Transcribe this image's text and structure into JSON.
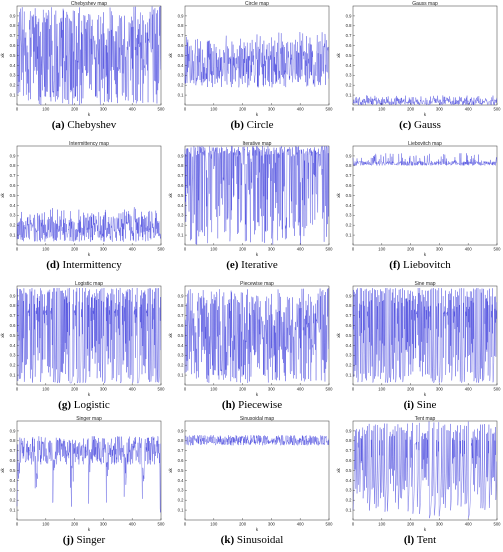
{
  "figure": {
    "panels": [
      {
        "letter": "(a)",
        "name": "Chebyshev",
        "title": "Chebyshev map",
        "color": "#2b2bd9"
      },
      {
        "letter": "(b)",
        "name": "Circle",
        "title": "Circle map",
        "color": "#2b2bd9"
      },
      {
        "letter": "(c)",
        "name": "Gauss",
        "title": "Gauss map",
        "color": "#2b2bd9"
      },
      {
        "letter": "(d)",
        "name": "Intermittency",
        "title": "Intermittency map",
        "color": "#2b2bd9"
      },
      {
        "letter": "(e)",
        "name": "Iterative",
        "title": "Iterative map",
        "color": "#2b2bd9"
      },
      {
        "letter": "(f)",
        "name": "Liebovitch",
        "title": "Liebovitch map",
        "color": "#2b2bd9"
      },
      {
        "letter": "(g)",
        "name": "Logistic",
        "title": "Logistic map",
        "color": "#2b2bd9"
      },
      {
        "letter": "(h)",
        "name": "Piecewise",
        "title": "Piecewise map",
        "color": "#2b2bd9"
      },
      {
        "letter": "(i)",
        "name": "Sine",
        "title": "Sine map",
        "color": "#2b2bd9"
      },
      {
        "letter": "(j)",
        "name": "Singer",
        "title": "Singer map",
        "color": "#2b2bd9"
      },
      {
        "letter": "(k)",
        "name": "Sinusoidal",
        "title": "Sinusoidal map",
        "color": "#2b2bd9"
      },
      {
        "letter": "(l)",
        "name": "Tent",
        "title": "Tent map",
        "color": "#2b2bd9"
      }
    ]
  },
  "chart_data": [
    {
      "type": "line",
      "title": "Chebyshev map",
      "xlabel": "k",
      "ylabel": "xk",
      "xlim": [
        0,
        500
      ],
      "ylim": [
        0,
        1
      ],
      "x_ticks": [
        "0",
        "100",
        "200",
        "300",
        "400",
        "500"
      ],
      "y_ticks": [
        "0.1",
        "0.2",
        "0.3",
        "0.4",
        "0.5",
        "0.6",
        "0.7",
        "0.8",
        "0.9"
      ],
      "series": [
        {
          "model": "chebyshev",
          "range": [
            0.0,
            1.0
          ],
          "n_points": 500
        }
      ]
    },
    {
      "type": "line",
      "title": "Circle map",
      "xlabel": "k",
      "ylabel": "xk",
      "xlim": [
        0,
        500
      ],
      "ylim": [
        0,
        1
      ],
      "x_ticks": [
        "0",
        "100",
        "200",
        "300",
        "400",
        "500"
      ],
      "y_ticks": [
        "0.1",
        "0.2",
        "0.3",
        "0.4",
        "0.5",
        "0.6",
        "0.7",
        "0.8",
        "0.9"
      ],
      "series": [
        {
          "model": "circle",
          "range": [
            0.05,
            0.9
          ],
          "n_points": 500
        }
      ]
    },
    {
      "type": "line",
      "title": "Gauss map",
      "xlabel": "k",
      "ylabel": "xk",
      "xlim": [
        0,
        500
      ],
      "ylim": [
        0,
        1
      ],
      "x_ticks": [
        "0",
        "100",
        "200",
        "300",
        "400",
        "500"
      ],
      "y_ticks": [
        "0.1",
        "0.2",
        "0.3",
        "0.4",
        "0.5",
        "0.6",
        "0.7",
        "0.8",
        "0.9"
      ],
      "series": [
        {
          "model": "gauss",
          "range": [
            0.0,
            0.32
          ],
          "n_points": 500
        }
      ]
    },
    {
      "type": "line",
      "title": "Intermittency map",
      "xlabel": "k",
      "ylabel": "xk",
      "xlim": [
        0,
        500
      ],
      "ylim": [
        0,
        1
      ],
      "x_ticks": [
        "0",
        "100",
        "200",
        "300",
        "400",
        "500"
      ],
      "y_ticks": [
        "0.1",
        "0.2",
        "0.3",
        "0.4",
        "0.5",
        "0.6",
        "0.7",
        "0.8",
        "0.9"
      ],
      "series": [
        {
          "model": "intermittency",
          "range": [
            0.0,
            0.65
          ],
          "n_points": 500
        }
      ]
    },
    {
      "type": "line",
      "title": "Iterative map",
      "xlabel": "k",
      "ylabel": "xk",
      "xlim": [
        0,
        500
      ],
      "ylim": [
        0,
        1
      ],
      "x_ticks": [
        "0",
        "100",
        "200",
        "300",
        "400",
        "500"
      ],
      "y_ticks": [
        "0.1",
        "0.2",
        "0.3",
        "0.4",
        "0.5",
        "0.6",
        "0.7",
        "0.8",
        "0.9"
      ],
      "series": [
        {
          "model": "iterative",
          "range": [
            0.0,
            1.0
          ],
          "n_points": 500
        }
      ]
    },
    {
      "type": "line",
      "title": "Liebovitch map",
      "xlabel": "k",
      "ylabel": "xk",
      "xlim": [
        0,
        500
      ],
      "ylim": [
        0,
        1
      ],
      "x_ticks": [
        "0",
        "100",
        "200",
        "300",
        "400",
        "500"
      ],
      "y_ticks": [
        "0.1",
        "0.2",
        "0.3",
        "0.4",
        "0.5",
        "0.6",
        "0.7",
        "0.8",
        "0.9"
      ],
      "series": [
        {
          "model": "liebovitch",
          "range": [
            0.58,
            0.95
          ],
          "n_points": 500
        }
      ]
    },
    {
      "type": "line",
      "title": "Logistic map",
      "xlabel": "k",
      "ylabel": "xk",
      "xlim": [
        0,
        500
      ],
      "ylim": [
        0,
        1
      ],
      "x_ticks": [
        "0",
        "100",
        "200",
        "300",
        "400",
        "500"
      ],
      "y_ticks": [
        "0.1",
        "0.2",
        "0.3",
        "0.4",
        "0.5",
        "0.6",
        "0.7",
        "0.8",
        "0.9"
      ],
      "series": [
        {
          "model": "logistic",
          "range": [
            0.02,
            0.98
          ],
          "n_points": 500
        }
      ]
    },
    {
      "type": "line",
      "title": "Piecewise map",
      "xlabel": "k",
      "ylabel": "xk",
      "xlim": [
        0,
        500
      ],
      "ylim": [
        0,
        1
      ],
      "x_ticks": [
        "0",
        "100",
        "200",
        "300",
        "400",
        "500"
      ],
      "y_ticks": [
        "0.1",
        "0.2",
        "0.3",
        "0.4",
        "0.5",
        "0.6",
        "0.7",
        "0.8",
        "0.9"
      ],
      "series": [
        {
          "model": "piecewise",
          "range": [
            0.02,
            0.98
          ],
          "n_points": 500
        }
      ]
    },
    {
      "type": "line",
      "title": "Sine map",
      "xlabel": "k",
      "ylabel": "xk",
      "xlim": [
        0,
        500
      ],
      "ylim": [
        0,
        1
      ],
      "x_ticks": [
        "0",
        "100",
        "200",
        "300",
        "400",
        "500"
      ],
      "y_ticks": [
        "0.1",
        "0.2",
        "0.3",
        "0.4",
        "0.5",
        "0.6",
        "0.7",
        "0.8",
        "0.9"
      ],
      "series": [
        {
          "model": "sine",
          "range": [
            0.02,
            0.98
          ],
          "n_points": 500
        }
      ]
    },
    {
      "type": "line",
      "title": "Singer map",
      "xlabel": "k",
      "ylabel": "xk",
      "xlim": [
        0,
        500
      ],
      "ylim": [
        0,
        1
      ],
      "x_ticks": [
        "0",
        "100",
        "200",
        "300",
        "400",
        "500"
      ],
      "y_ticks": [
        "0.1",
        "0.2",
        "0.3",
        "0.4",
        "0.5",
        "0.6",
        "0.7",
        "0.8",
        "0.9"
      ],
      "series": [
        {
          "model": "singer",
          "range": [
            0.02,
            0.92
          ],
          "n_points": 500
        }
      ]
    },
    {
      "type": "line",
      "title": "Sinusoidal map",
      "xlabel": "k",
      "ylabel": "xk",
      "xlim": [
        0,
        500
      ],
      "ylim": [
        0,
        1
      ],
      "x_ticks": [
        "0",
        "100",
        "200",
        "300",
        "400",
        "500"
      ],
      "y_ticks": [
        "0.1",
        "0.2",
        "0.3",
        "0.4",
        "0.5",
        "0.6",
        "0.7",
        "0.8",
        "0.9"
      ],
      "series": [
        {
          "model": "sinusoidal",
          "range": [
            0.55,
            0.9
          ],
          "n_points": 500
        }
      ]
    },
    {
      "type": "line",
      "title": "Tent map",
      "xlabel": "k",
      "ylabel": "xk",
      "xlim": [
        0,
        500
      ],
      "ylim": [
        0,
        1
      ],
      "x_ticks": [
        "0",
        "100",
        "200",
        "300",
        "400",
        "500"
      ],
      "y_ticks": [
        "0.1",
        "0.2",
        "0.3",
        "0.4",
        "0.5",
        "0.6",
        "0.7",
        "0.8",
        "0.9"
      ],
      "series": [
        {
          "model": "tent",
          "range": [
            0.0,
            1.0
          ],
          "n_points": 500
        }
      ]
    }
  ]
}
